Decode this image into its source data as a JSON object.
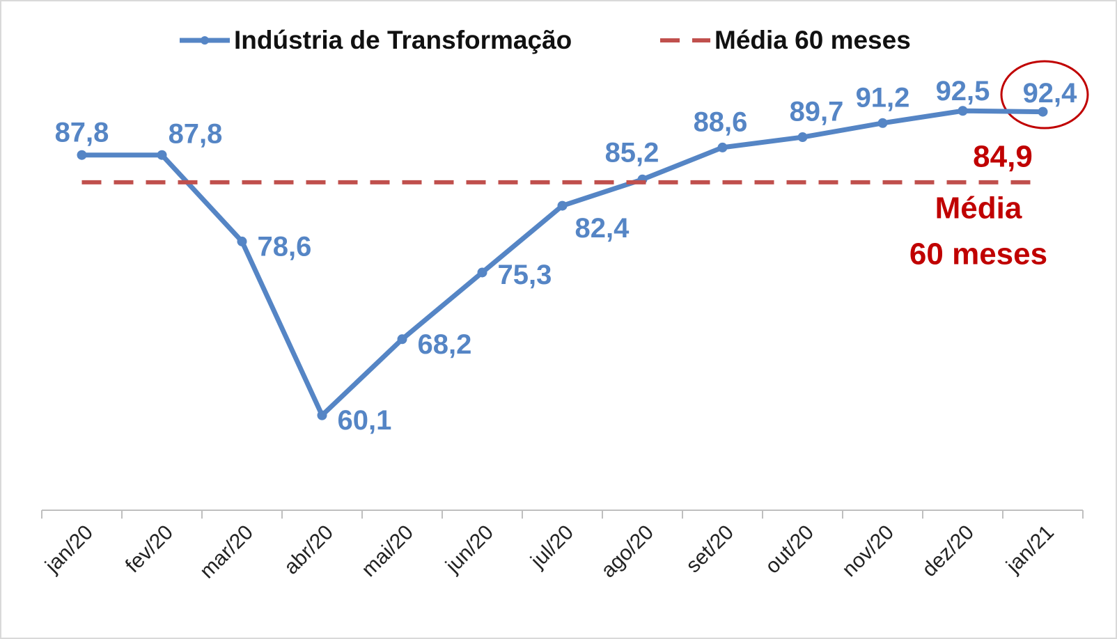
{
  "chart_data": {
    "type": "line",
    "categories": [
      "jan/20",
      "fev/20",
      "mar/20",
      "abr/20",
      "mai/20",
      "jun/20",
      "jul/20",
      "ago/20",
      "set/20",
      "out/20",
      "nov/20",
      "dez/20",
      "jan/21"
    ],
    "series": [
      {
        "name": "Indústria de Transformação",
        "color": "#5585c5",
        "values": [
          87.8,
          87.8,
          78.6,
          60.1,
          68.2,
          75.3,
          82.4,
          85.2,
          88.6,
          89.7,
          91.2,
          92.5,
          92.4
        ],
        "value_labels": [
          "87,8",
          "87,8",
          "78,6",
          "60,1",
          "68,2",
          "75,3",
          "82,4",
          "85,2",
          "88,6",
          "89,7",
          "91,2",
          "92,5",
          "92,4"
        ]
      },
      {
        "name": "Média 60 meses",
        "color": "#c0504d",
        "dashed": true,
        "values": [
          84.9,
          84.9,
          84.9,
          84.9,
          84.9,
          84.9,
          84.9,
          84.9,
          84.9,
          84.9,
          84.9,
          84.9,
          84.9
        ],
        "value_labels": [
          null,
          null,
          null,
          null,
          null,
          null,
          null,
          null,
          null,
          null,
          null,
          null,
          "84,9"
        ]
      }
    ],
    "annotation": [
      "Média",
      "60 meses"
    ],
    "ylim": [
      50,
      100
    ],
    "legend": "top"
  }
}
